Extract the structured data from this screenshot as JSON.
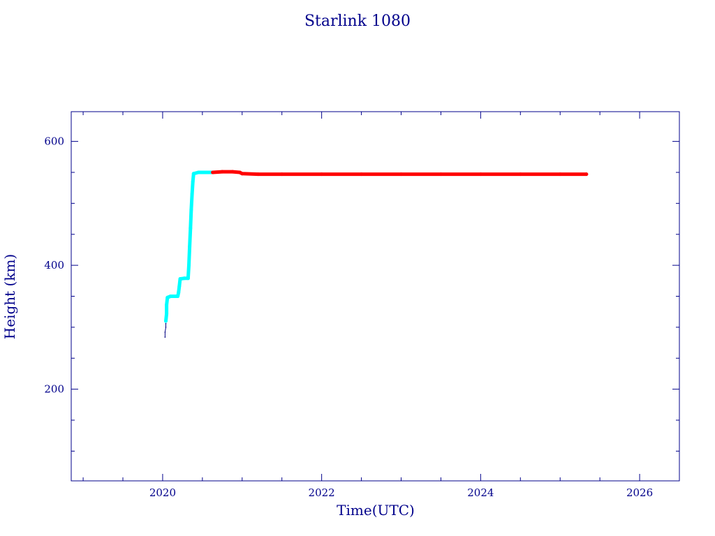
{
  "chart_data": {
    "type": "scatter",
    "title": "Starlink 1080",
    "xlabel": "Time(UTC)",
    "ylabel": "Height (km)",
    "xlim": [
      2018.85,
      2026.5
    ],
    "ylim": [
      52,
      648
    ],
    "xticks": [
      2020,
      2022,
      2024,
      2026
    ],
    "yticks": [
      200,
      400,
      600
    ],
    "grid": false,
    "legend": "none",
    "colors": {
      "axis": "#00008b",
      "text": "#00008b"
    },
    "series": [
      {
        "color": "#000080",
        "points": [
          [
            2020.03,
            284
          ],
          [
            2020.03,
            292
          ],
          [
            2020.04,
            300
          ],
          [
            2020.04,
            306
          ]
        ]
      },
      {
        "color": "#00ffff",
        "points": [
          [
            2020.04,
            310
          ],
          [
            2020.05,
            322
          ],
          [
            2020.05,
            336
          ],
          [
            2020.06,
            348
          ],
          [
            2020.1,
            350
          ],
          [
            2020.14,
            350
          ],
          [
            2020.19,
            350
          ],
          [
            2020.2,
            356
          ],
          [
            2020.21,
            366
          ],
          [
            2020.22,
            378
          ],
          [
            2020.27,
            379
          ],
          [
            2020.32,
            379
          ],
          [
            2020.33,
            400
          ],
          [
            2020.34,
            430
          ],
          [
            2020.35,
            460
          ],
          [
            2020.36,
            490
          ],
          [
            2020.37,
            515
          ],
          [
            2020.38,
            535
          ],
          [
            2020.39,
            548
          ],
          [
            2020.45,
            550
          ],
          [
            2020.5,
            550
          ],
          [
            2020.55,
            550
          ],
          [
            2020.62,
            550
          ]
        ]
      },
      {
        "color": "#ff0000",
        "points": [
          [
            2020.63,
            550
          ],
          [
            2020.75,
            551
          ],
          [
            2020.88,
            551
          ],
          [
            2020.97,
            550
          ],
          [
            2021.0,
            548
          ],
          [
            2021.2,
            547
          ],
          [
            2021.5,
            547
          ],
          [
            2022.0,
            547
          ],
          [
            2022.5,
            547
          ],
          [
            2023.0,
            547
          ],
          [
            2023.5,
            547
          ],
          [
            2024.0,
            547
          ],
          [
            2024.5,
            547
          ],
          [
            2025.0,
            547
          ],
          [
            2025.33,
            547
          ]
        ]
      }
    ]
  }
}
